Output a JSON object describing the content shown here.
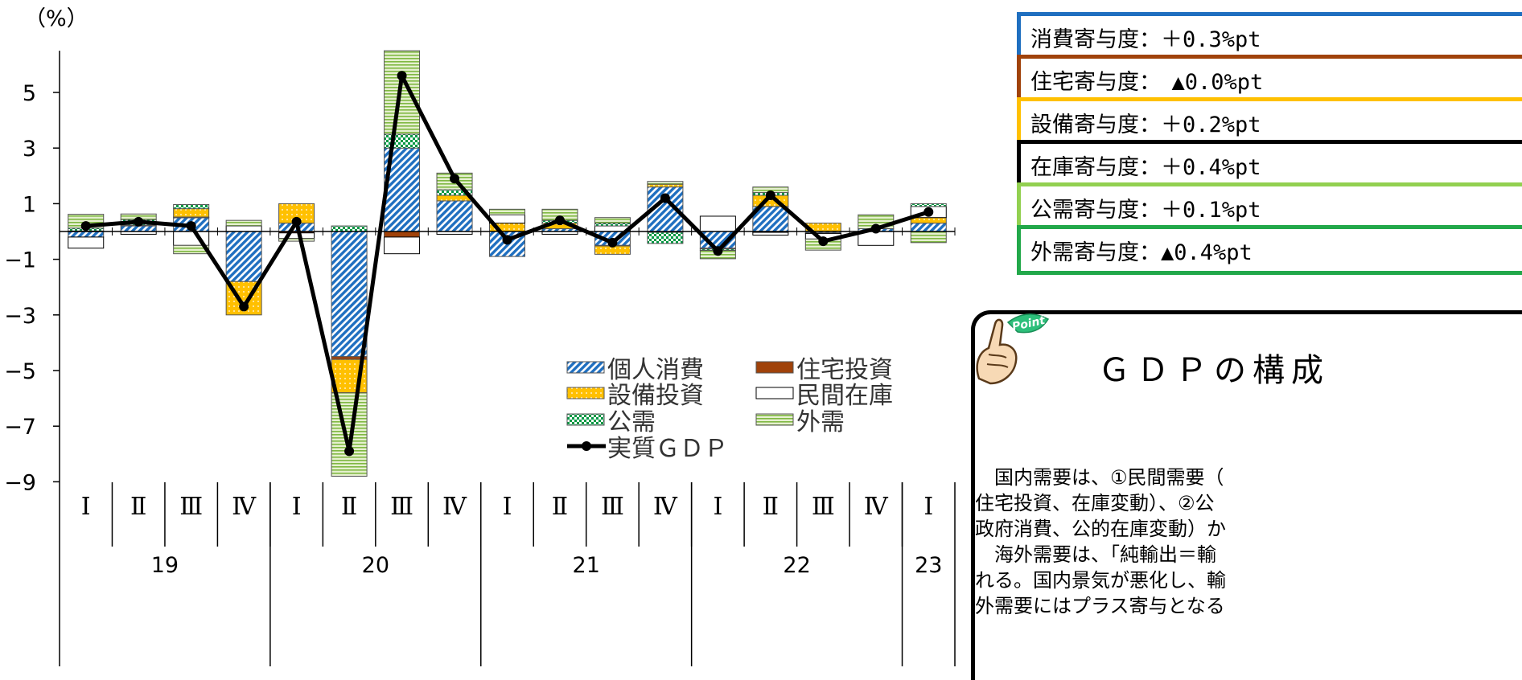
{
  "chart_data": {
    "type": "bar",
    "subtype": "stacked-bar-with-line",
    "y_unit_label": "（%）",
    "ylim": [
      -9,
      6.5
    ],
    "y_ticks": [
      5,
      3,
      1,
      -1,
      -3,
      -5,
      -7,
      -9
    ],
    "y_tick_labels": [
      "5",
      "3",
      "1",
      "−1",
      "−3",
      "−5",
      "−7",
      "−9"
    ],
    "quarter_labels": [
      "Ⅰ",
      "Ⅱ",
      "Ⅲ",
      "Ⅳ",
      "Ⅰ",
      "Ⅱ",
      "Ⅲ",
      "Ⅳ",
      "Ⅰ",
      "Ⅱ",
      "Ⅲ",
      "Ⅳ",
      "Ⅰ",
      "Ⅱ",
      "Ⅲ",
      "Ⅳ",
      "Ⅰ"
    ],
    "year_groups": [
      {
        "label": "19",
        "quarters": 4
      },
      {
        "label": "20",
        "quarters": 4
      },
      {
        "label": "21",
        "quarters": 4
      },
      {
        "label": "22",
        "quarters": 4
      },
      {
        "label": "23",
        "quarters": 1
      }
    ],
    "series": [
      {
        "name": "個人消費",
        "color": "#1f6fc0",
        "pattern": "hatch",
        "values": [
          -0.2,
          0.2,
          0.5,
          -1.8,
          0.3,
          -4.5,
          3.0,
          1.1,
          -0.9,
          0.1,
          -0.5,
          1.6,
          -0.6,
          0.9,
          -0.05,
          0.1,
          0.3
        ]
      },
      {
        "name": "住宅投資",
        "color": "#a0420a",
        "pattern": "solid",
        "values": [
          0.02,
          0.03,
          0.02,
          0.0,
          -0.05,
          -0.1,
          -0.2,
          0.0,
          0.0,
          0.0,
          -0.02,
          -0.03,
          -0.03,
          -0.03,
          -0.02,
          0.0,
          0.0
        ]
      },
      {
        "name": "設備投資",
        "color": "#ffc000",
        "pattern": "dots",
        "values": [
          0.0,
          0.0,
          0.3,
          -1.2,
          0.7,
          -1.2,
          0.0,
          0.2,
          0.3,
          0.2,
          -0.3,
          0.1,
          0.0,
          0.4,
          0.3,
          0.0,
          0.2
        ]
      },
      {
        "name": "民間在庫",
        "color": "#ffffff",
        "pattern": "solid",
        "values": [
          -0.4,
          -0.1,
          -0.5,
          0.2,
          -0.2,
          0.0,
          -0.6,
          -0.1,
          0.3,
          -0.1,
          0.2,
          0.0,
          0.55,
          -0.1,
          -0.2,
          -0.5,
          0.4
        ]
      },
      {
        "name": "公需",
        "color": "#009944",
        "pattern": "check",
        "values": [
          0.1,
          0.2,
          0.15,
          0.0,
          0.0,
          0.2,
          0.5,
          0.2,
          0.0,
          0.1,
          0.1,
          -0.4,
          -0.05,
          0.1,
          0.0,
          0.0,
          0.1
        ]
      },
      {
        "name": "外需",
        "color": "#92c84a",
        "pattern": "hlines",
        "values": [
          0.5,
          0.2,
          -0.3,
          0.2,
          -0.1,
          -3.0,
          3.0,
          0.6,
          0.2,
          0.4,
          0.2,
          0.1,
          -0.3,
          0.2,
          -0.4,
          0.5,
          -0.4
        ]
      },
      {
        "name": "実質ＧＤＰ",
        "color": "#000000",
        "type": "line",
        "values": [
          0.2,
          0.35,
          0.2,
          -2.7,
          0.35,
          -7.9,
          5.6,
          1.9,
          -0.3,
          0.4,
          -0.4,
          1.2,
          -0.7,
          1.3,
          -0.35,
          0.1,
          0.7
        ]
      }
    ],
    "legend": {
      "placement": "lower-right-inside",
      "columns": 2
    }
  },
  "contribution_boxes": [
    {
      "text": "消費寄与度：＋0.3%pt",
      "color": "#1f6fc0"
    },
    {
      "text": "住宅寄与度：　▲0.0%pt",
      "color": "#a0420a"
    },
    {
      "text": "設備寄与度：＋0.2%pt",
      "color": "#ffc000"
    },
    {
      "text": "在庫寄与度：＋0.4%pt",
      "color": "#000000"
    },
    {
      "text": "公需寄与度：＋0.1%pt",
      "color": "#92d050"
    },
    {
      "text": "外需寄与度：▲0.4%pt",
      "color": "#22a84a"
    }
  ],
  "point_panel": {
    "icon_text": "Point",
    "title": "ＧＤＰの構成",
    "lines": [
      "　国内需要は、①民間需要（",
      "住宅投資、在庫変動）、②公",
      "政府消費、公的在庫変動）か",
      "　海外需要は、「純輸出＝輸",
      "れる。国内景気が悪化し、輸",
      "外需要にはプラス寄与となる"
    ]
  }
}
